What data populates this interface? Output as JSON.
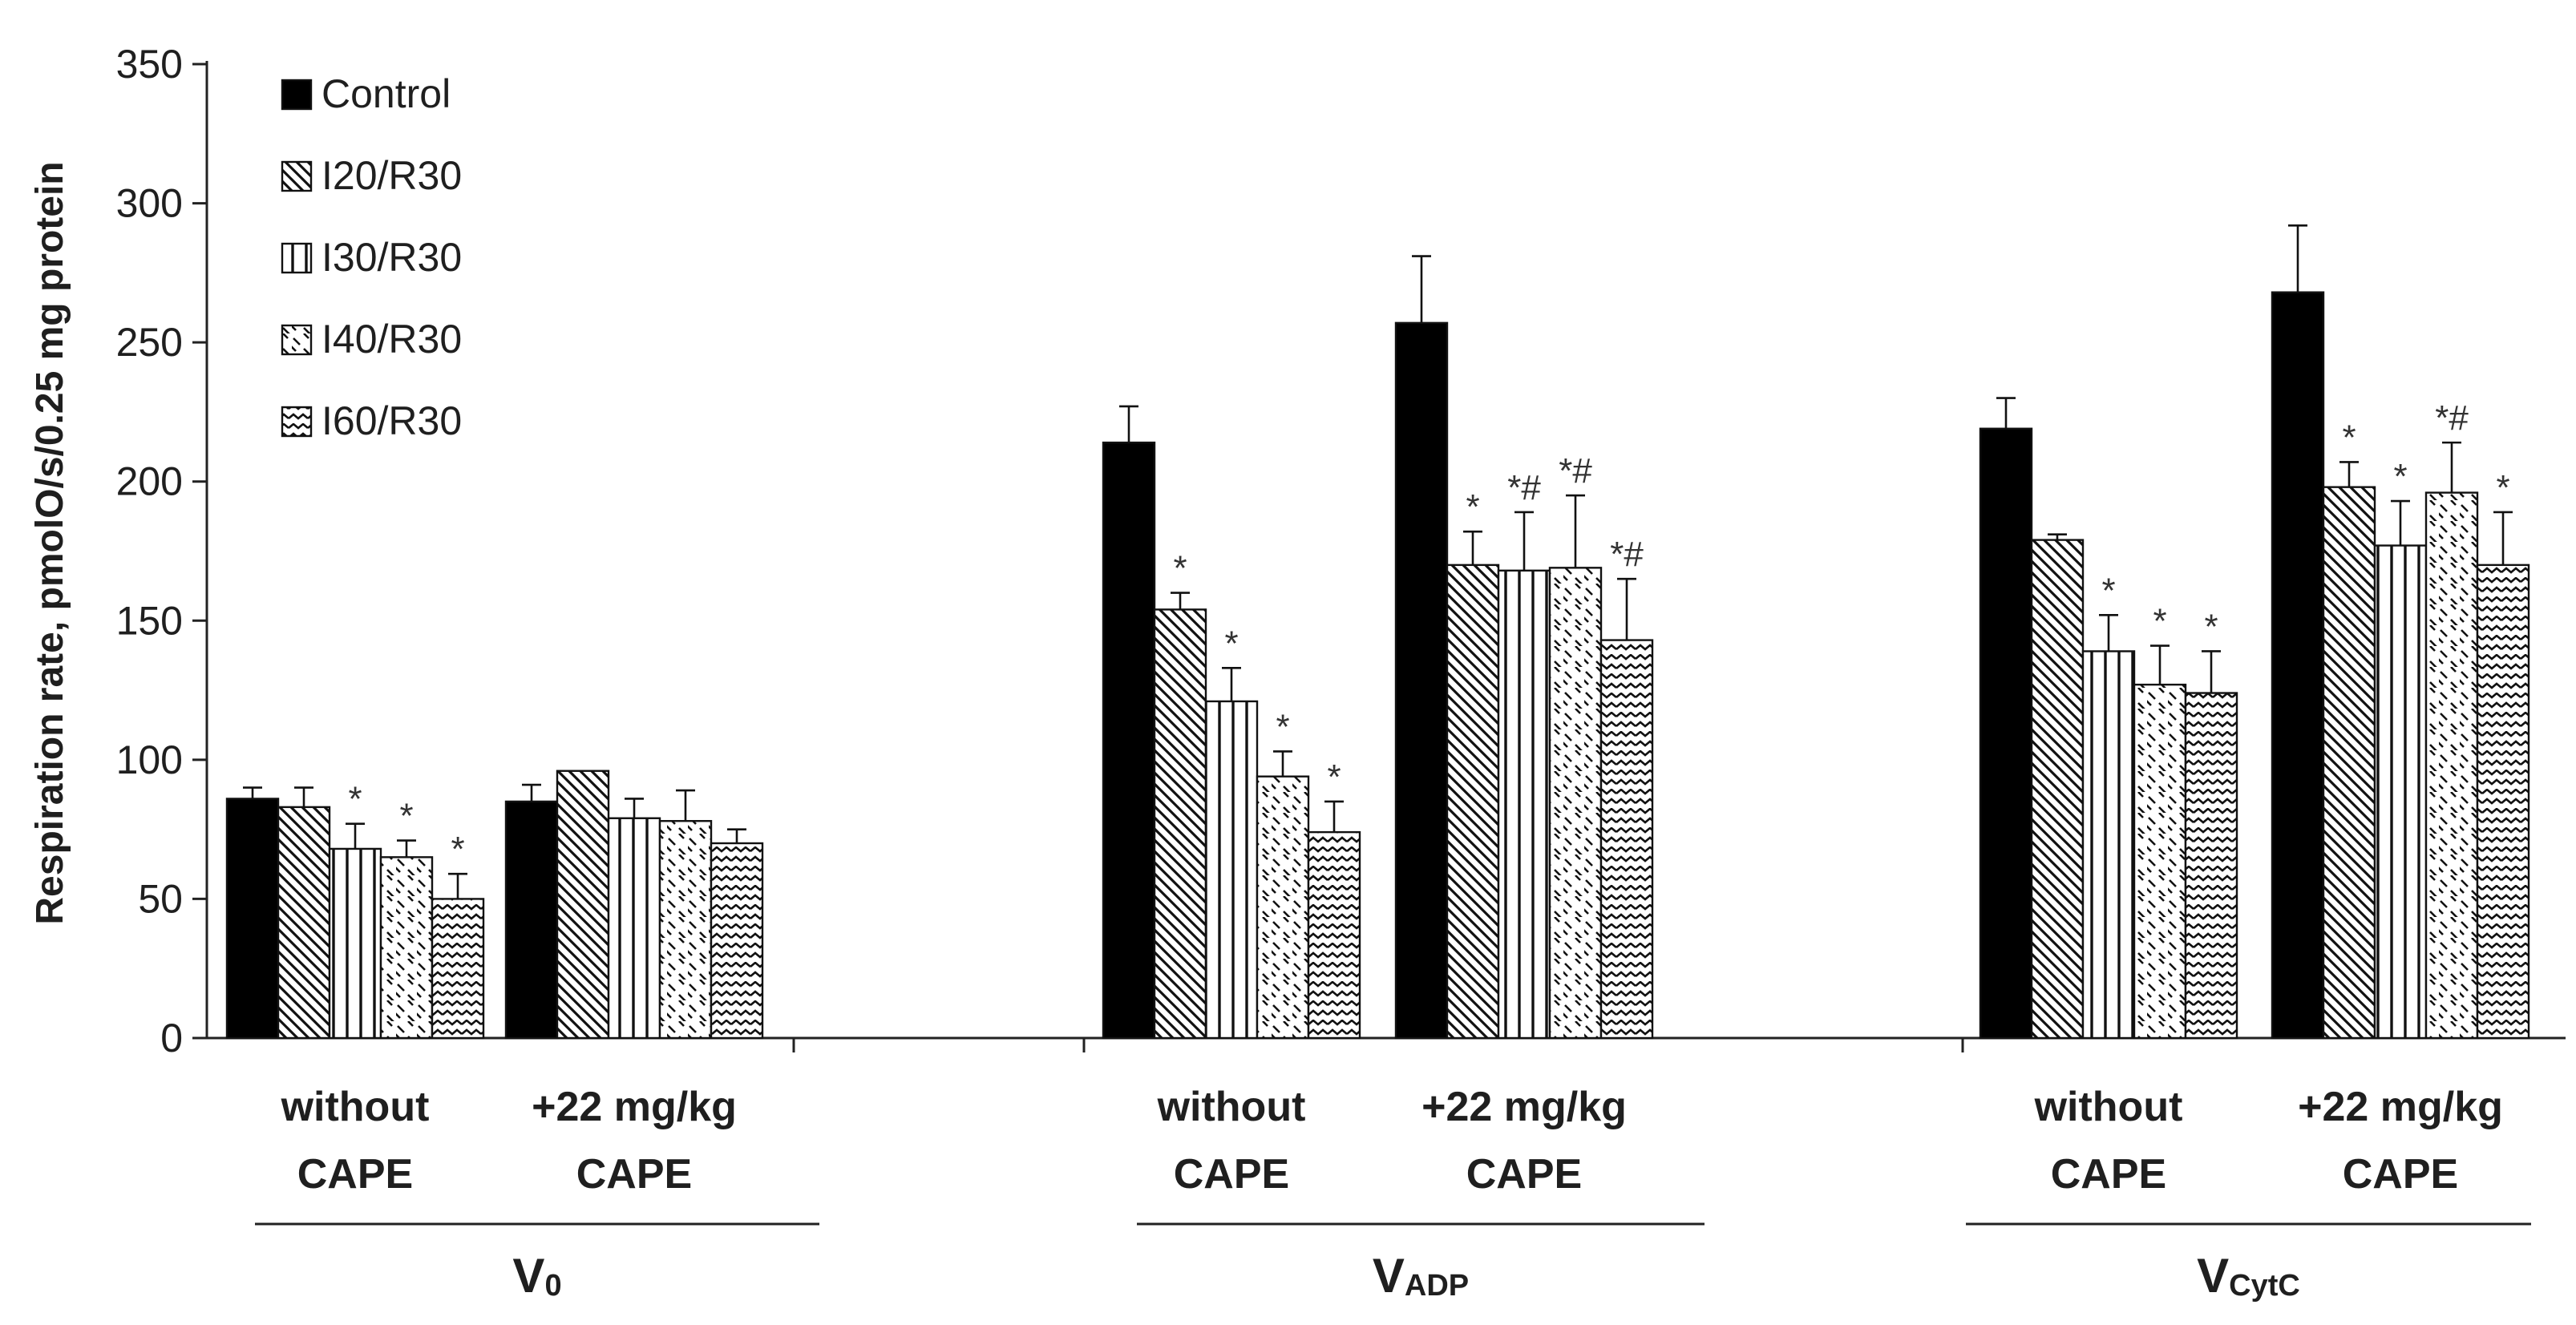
{
  "chart_data": {
    "type": "bar",
    "ylabel": "Respiration rate, pmolO/s/0.25 mg protein",
    "ylim": [
      0,
      350
    ],
    "yticks": [
      "0",
      "50",
      "100",
      "150",
      "200",
      "250",
      "300",
      "350"
    ],
    "series": [
      {
        "name": "Control",
        "pattern": "solid"
      },
      {
        "name": "I20/R30",
        "pattern": "diagonal"
      },
      {
        "name": "I30/R30",
        "pattern": "vertical"
      },
      {
        "name": "I40/R30",
        "pattern": "dashes"
      },
      {
        "name": "I60/R30",
        "pattern": "zigzag"
      }
    ],
    "sections": [
      {
        "label_main": "V",
        "label_sub": "0",
        "groups": [
          {
            "label_line1": "without",
            "label_line2": "CAPE",
            "bars": [
              {
                "value": 86,
                "error": 4,
                "sig": ""
              },
              {
                "value": 83,
                "error": 7,
                "sig": ""
              },
              {
                "value": 68,
                "error": 9,
                "sig": "*"
              },
              {
                "value": 65,
                "error": 6,
                "sig": "*"
              },
              {
                "value": 50,
                "error": 9,
                "sig": "*"
              }
            ]
          },
          {
            "label_line1": "+22 mg/kg",
            "label_line2": "CAPE",
            "bars": [
              {
                "value": 85,
                "error": 6,
                "sig": ""
              },
              {
                "value": 96,
                "error": 0,
                "sig": ""
              },
              {
                "value": 79,
                "error": 7,
                "sig": ""
              },
              {
                "value": 78,
                "error": 11,
                "sig": ""
              },
              {
                "value": 70,
                "error": 5,
                "sig": ""
              }
            ]
          }
        ]
      },
      {
        "label_main": "V",
        "label_sub": "ADP",
        "groups": [
          {
            "label_line1": "without",
            "label_line2": "CAPE",
            "bars": [
              {
                "value": 214,
                "error": 13,
                "sig": ""
              },
              {
                "value": 154,
                "error": 6,
                "sig": "*"
              },
              {
                "value": 121,
                "error": 12,
                "sig": "*"
              },
              {
                "value": 94,
                "error": 9,
                "sig": "*"
              },
              {
                "value": 74,
                "error": 11,
                "sig": "*"
              }
            ]
          },
          {
            "label_line1": "+22 mg/kg",
            "label_line2": "CAPE",
            "bars": [
              {
                "value": 257,
                "error": 24,
                "sig": ""
              },
              {
                "value": 170,
                "error": 12,
                "sig": "*"
              },
              {
                "value": 168,
                "error": 21,
                "sig": "*#"
              },
              {
                "value": 169,
                "error": 26,
                "sig": "*#"
              },
              {
                "value": 143,
                "error": 22,
                "sig": "*#"
              }
            ]
          }
        ]
      },
      {
        "label_main": "V",
        "label_sub": "CytC",
        "groups": [
          {
            "label_line1": "without",
            "label_line2": "CAPE",
            "bars": [
              {
                "value": 219,
                "error": 11,
                "sig": ""
              },
              {
                "value": 179,
                "error": 2,
                "sig": ""
              },
              {
                "value": 139,
                "error": 13,
                "sig": "*"
              },
              {
                "value": 127,
                "error": 14,
                "sig": "*"
              },
              {
                "value": 124,
                "error": 15,
                "sig": "*"
              }
            ]
          },
          {
            "label_line1": "+22 mg/kg",
            "label_line2": "CAPE",
            "bars": [
              {
                "value": 268,
                "error": 24,
                "sig": ""
              },
              {
                "value": 198,
                "error": 9,
                "sig": "*"
              },
              {
                "value": 177,
                "error": 16,
                "sig": "*"
              },
              {
                "value": 196,
                "error": 18,
                "sig": "*#"
              },
              {
                "value": 170,
                "error": 19,
                "sig": "*"
              }
            ]
          }
        ]
      }
    ]
  }
}
